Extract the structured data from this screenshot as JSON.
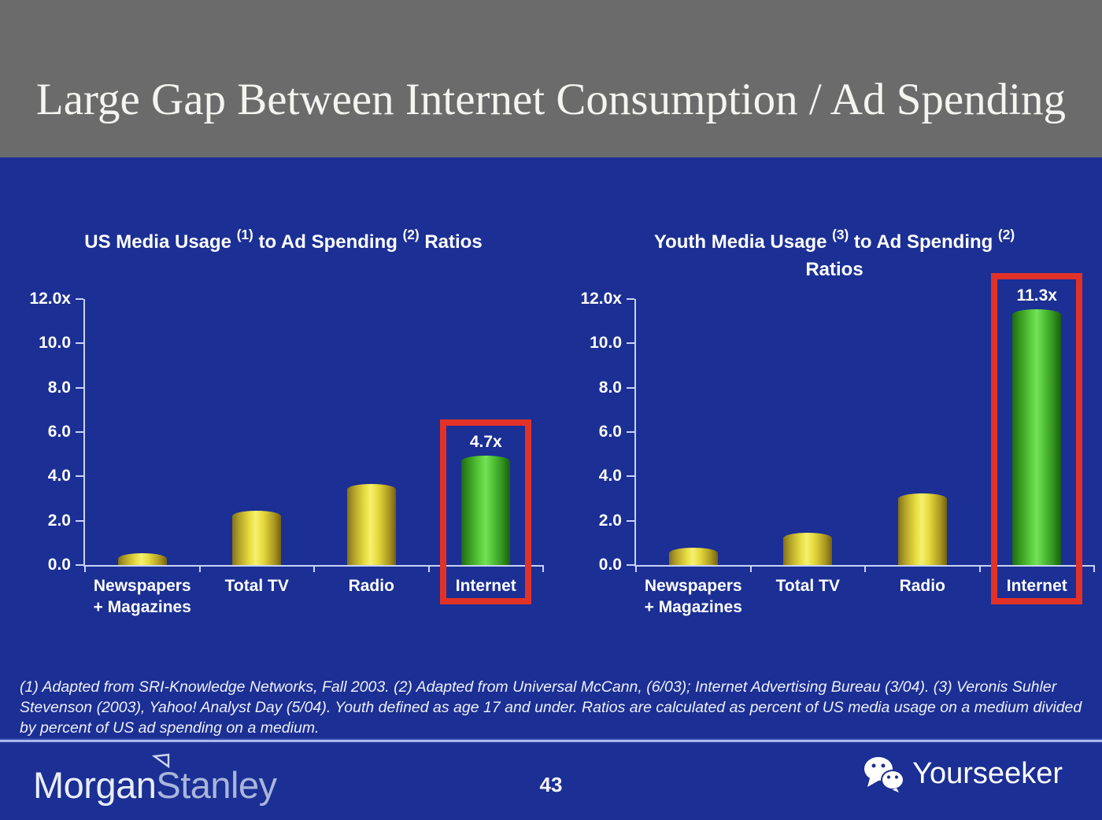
{
  "slide": {
    "title": "Large Gap Between Internet Consumption / Ad Spending",
    "page_number": "43",
    "footnote": "(1) Adapted from SRI-Knowledge Networks, Fall 2003.  (2) Adapted from Universal McCann, (6/03); Internet Advertising Bureau (3/04). (3) Veronis Suhler Stevenson (2003), Yahoo! Analyst Day (5/04).  Youth defined as age 17 and under.  Ratios are calculated as percent of US media usage on a medium divided by percent of US ad spending on a medium.",
    "brand": {
      "part1": "Morgan",
      "part2": "Stanley"
    },
    "watermark": "Yourseeker"
  },
  "colors": {
    "header_bg": "#6b6b6b",
    "slide_bg": "#1b2f94",
    "title_text": "#f4f4f1",
    "chart_text": "#ffffff",
    "axis_line": "#c7d3f5",
    "bar_yellow": "#e8dd42",
    "bar_green": "#5bcd3d",
    "highlight_red": "#e23227"
  },
  "chart_data": [
    {
      "type": "bar",
      "title": "US Media Usage (1) to Ad Spending (2) Ratios",
      "title_segments": [
        [
          "text",
          "US Media Usage "
        ],
        [
          "sup",
          "(1)"
        ],
        [
          "text",
          " to Ad Spending "
        ],
        [
          "sup",
          "(2)"
        ],
        [
          "text",
          " Ratios"
        ]
      ],
      "categories": [
        "Newspapers\n+ Magazines",
        "Total TV",
        "Radio",
        "Internet"
      ],
      "values": [
        0.3,
        2.2,
        3.4,
        4.7
      ],
      "bar_colors": [
        "yellow",
        "yellow",
        "yellow",
        "green"
      ],
      "data_labels": [
        null,
        null,
        null,
        "4.7x"
      ],
      "highlighted_index": 3,
      "y_ticks": [
        [
          "12.0x",
          12
        ],
        [
          "10.0",
          10
        ],
        [
          "8.0",
          8
        ],
        [
          "6.0",
          6
        ],
        [
          "4.0",
          4
        ],
        [
          "2.0",
          2
        ],
        [
          "0.0",
          0
        ]
      ],
      "ylim": [
        0,
        12
      ],
      "xlabel": "",
      "ylabel": "",
      "grid": false,
      "legend": "none"
    },
    {
      "type": "bar",
      "title": "Youth Media Usage (3) to Ad Spending (2) Ratios",
      "title_segments": [
        [
          "text",
          "Youth Media Usage "
        ],
        [
          "sup",
          "(3)"
        ],
        [
          "text",
          " to Ad Spending "
        ],
        [
          "sup",
          "(2)"
        ],
        [
          "br",
          ""
        ],
        [
          "text",
          "Ratios"
        ]
      ],
      "categories": [
        "Newspapers\n+ Magazines",
        "Total TV",
        "Radio",
        "Internet"
      ],
      "values": [
        0.55,
        1.2,
        3.0,
        11.3
      ],
      "bar_colors": [
        "yellow",
        "yellow",
        "yellow",
        "green"
      ],
      "data_labels": [
        null,
        null,
        null,
        "11.3x"
      ],
      "highlighted_index": 3,
      "y_ticks": [
        [
          "12.0x",
          12
        ],
        [
          "10.0",
          10
        ],
        [
          "8.0",
          8
        ],
        [
          "6.0",
          6
        ],
        [
          "4.0",
          4
        ],
        [
          "2.0",
          2
        ],
        [
          "0.0",
          0
        ]
      ],
      "ylim": [
        0,
        12
      ],
      "xlabel": "",
      "ylabel": "",
      "grid": false,
      "legend": "none"
    }
  ]
}
